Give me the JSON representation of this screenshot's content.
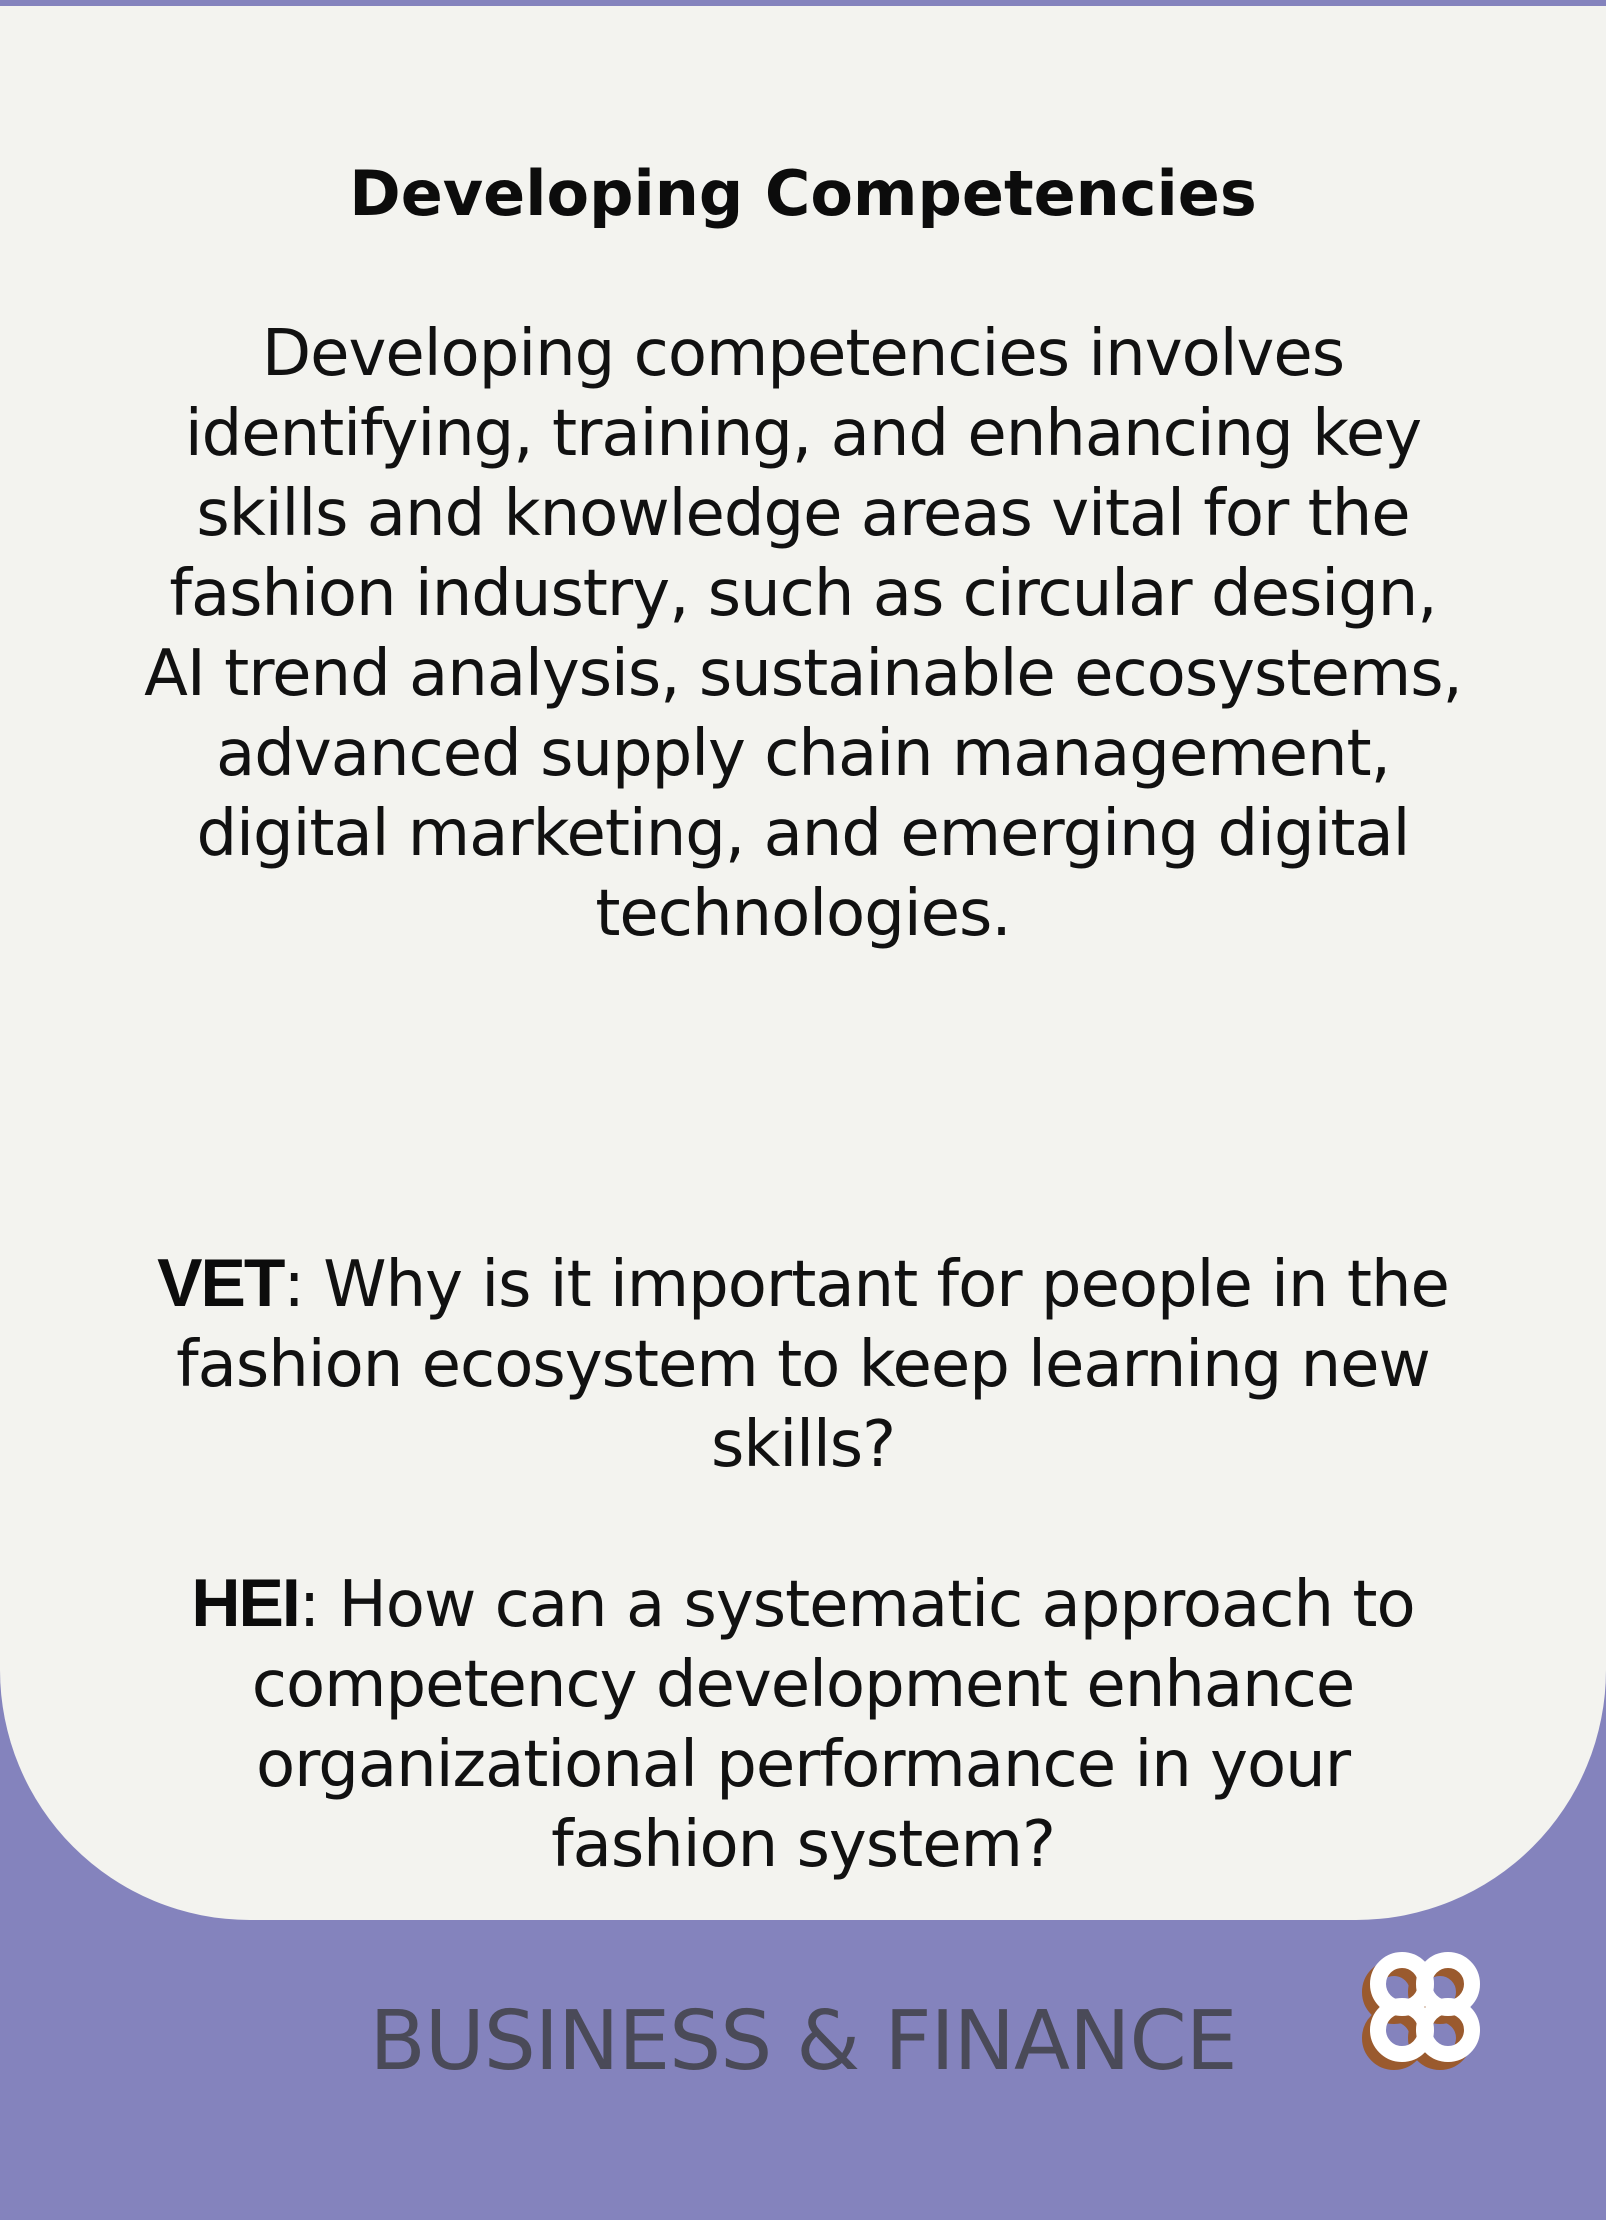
{
  "card": {
    "title": "Developing Competencies",
    "description": "Developing competencies involves identifying, training, and enhancing key skills and knowledge areas vital for the fashion industry, such as circular design, AI trend analysis, sustainable ecosystems, advanced supply chain management, digital marketing, and emerging digital technologies.",
    "vet_label": "VET",
    "vet_question": ": Why is it important for people in the fashion ecosystem to keep learning new skills?",
    "hei_label": "HEI",
    "hei_question": ": How can a systematic approach to competency development enhance organizational performance in your fashion system?"
  },
  "footer": {
    "category": "BUSINESS & FINANCE",
    "logo_icon": "clover-logo-icon"
  },
  "colors": {
    "background": "#8483bd",
    "card": "#f3f3ef",
    "logo_front": "#ffffff",
    "logo_shadow": "#9a5a2e",
    "category_text": "#4a4a58"
  }
}
